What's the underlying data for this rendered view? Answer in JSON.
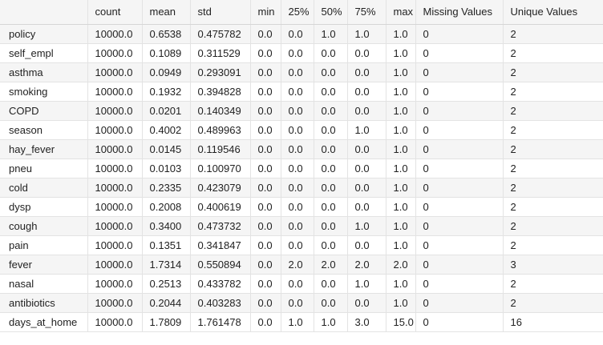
{
  "table": {
    "columns": [
      "",
      "count",
      "mean",
      "std",
      "min",
      "25%",
      "50%",
      "75%",
      "max",
      "Missing Values",
      "Unique Values"
    ],
    "rows": [
      [
        "policy",
        "10000.0",
        "0.6538",
        "0.475782",
        "0.0",
        "0.0",
        "1.0",
        "1.0",
        "1.0",
        "0",
        "2"
      ],
      [
        "self_empl",
        "10000.0",
        "0.1089",
        "0.311529",
        "0.0",
        "0.0",
        "0.0",
        "0.0",
        "1.0",
        "0",
        "2"
      ],
      [
        "asthma",
        "10000.0",
        "0.0949",
        "0.293091",
        "0.0",
        "0.0",
        "0.0",
        "0.0",
        "1.0",
        "0",
        "2"
      ],
      [
        "smoking",
        "10000.0",
        "0.1932",
        "0.394828",
        "0.0",
        "0.0",
        "0.0",
        "0.0",
        "1.0",
        "0",
        "2"
      ],
      [
        "COPD",
        "10000.0",
        "0.0201",
        "0.140349",
        "0.0",
        "0.0",
        "0.0",
        "0.0",
        "1.0",
        "0",
        "2"
      ],
      [
        "season",
        "10000.0",
        "0.4002",
        "0.489963",
        "0.0",
        "0.0",
        "0.0",
        "1.0",
        "1.0",
        "0",
        "2"
      ],
      [
        "hay_fever",
        "10000.0",
        "0.0145",
        "0.119546",
        "0.0",
        "0.0",
        "0.0",
        "0.0",
        "1.0",
        "0",
        "2"
      ],
      [
        "pneu",
        "10000.0",
        "0.0103",
        "0.100970",
        "0.0",
        "0.0",
        "0.0",
        "0.0",
        "1.0",
        "0",
        "2"
      ],
      [
        "cold",
        "10000.0",
        "0.2335",
        "0.423079",
        "0.0",
        "0.0",
        "0.0",
        "0.0",
        "1.0",
        "0",
        "2"
      ],
      [
        "dysp",
        "10000.0",
        "0.2008",
        "0.400619",
        "0.0",
        "0.0",
        "0.0",
        "0.0",
        "1.0",
        "0",
        "2"
      ],
      [
        "cough",
        "10000.0",
        "0.3400",
        "0.473732",
        "0.0",
        "0.0",
        "0.0",
        "1.0",
        "1.0",
        "0",
        "2"
      ],
      [
        "pain",
        "10000.0",
        "0.1351",
        "0.341847",
        "0.0",
        "0.0",
        "0.0",
        "0.0",
        "1.0",
        "0",
        "2"
      ],
      [
        "fever",
        "10000.0",
        "1.7314",
        "0.550894",
        "0.0",
        "2.0",
        "2.0",
        "2.0",
        "2.0",
        "0",
        "3"
      ],
      [
        "nasal",
        "10000.0",
        "0.2513",
        "0.433782",
        "0.0",
        "0.0",
        "0.0",
        "1.0",
        "1.0",
        "0",
        "2"
      ],
      [
        "antibiotics",
        "10000.0",
        "0.2044",
        "0.403283",
        "0.0",
        "0.0",
        "0.0",
        "0.0",
        "1.0",
        "0",
        "2"
      ],
      [
        "days_at_home",
        "10000.0",
        "1.7809",
        "1.761478",
        "0.0",
        "1.0",
        "1.0",
        "3.0",
        "15.0",
        "0",
        "16"
      ]
    ]
  }
}
